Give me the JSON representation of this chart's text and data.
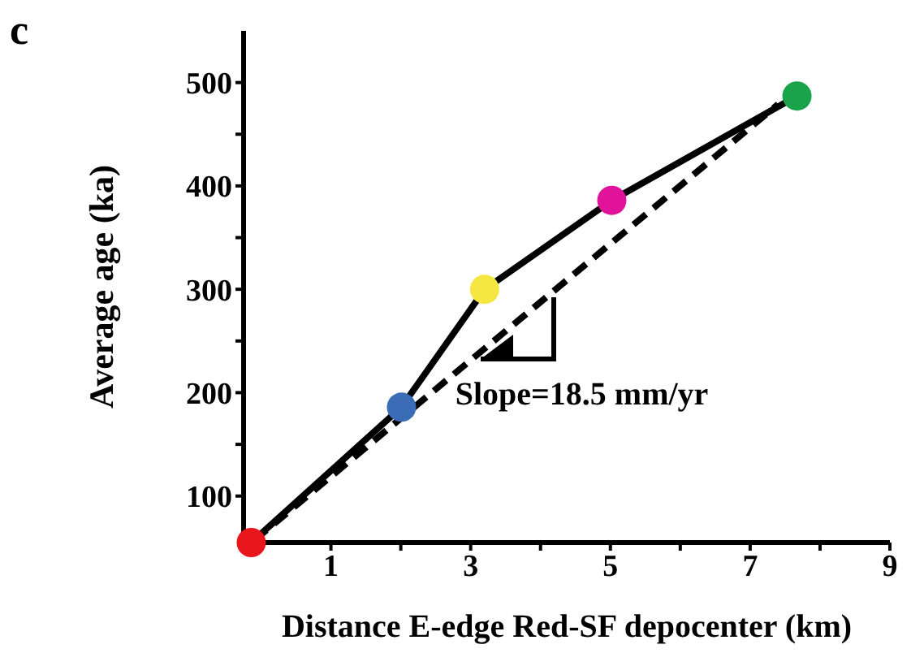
{
  "chart_data": {
    "type": "line",
    "xlabel": "Distance E-edge Red-SF depocenter (km)",
    "ylabel": "Average age (ka)",
    "annotations": [
      "c",
      {
        "text": "Slope=18.5 mm/yr",
        "x": 3.5,
        "y": 260
      }
    ],
    "xlim": [
      -0.25,
      9
    ],
    "xticks": [
      {
        "value": 0,
        "label": null
      },
      1,
      {
        "value": 2,
        "label": null
      },
      3,
      {
        "value": 4,
        "label": null
      },
      5,
      {
        "value": 6,
        "label": null
      },
      7,
      {
        "value": 8,
        "label": null
      },
      9
    ],
    "ylim": [
      55,
      550
    ],
    "yticks": [
      100,
      {
        "value": 150,
        "label": null
      },
      200,
      {
        "value": 250,
        "label": null
      },
      300,
      {
        "value": 350,
        "label": null
      },
      400,
      {
        "value": 450,
        "label": null
      },
      500
    ],
    "grid": false,
    "series": [
      {
        "x": [
          -0.14,
          2.01,
          3.2,
          5.02,
          7.67
        ],
        "values": [
          55,
          186,
          300,
          386,
          487
        ],
        "color": "#000000",
        "colors": [
          "#e8151b",
          "#3a6db5",
          "#f5e642",
          "#e0139a",
          "#1aa34a"
        ],
        "marker": "circle",
        "line_style": "solid"
      },
      {
        "x": [
          -0.1,
          7.4
        ],
        "values": [
          57,
          479
        ],
        "color": "#000000",
        "marker": "none",
        "line_style": "dashed"
      }
    ]
  }
}
